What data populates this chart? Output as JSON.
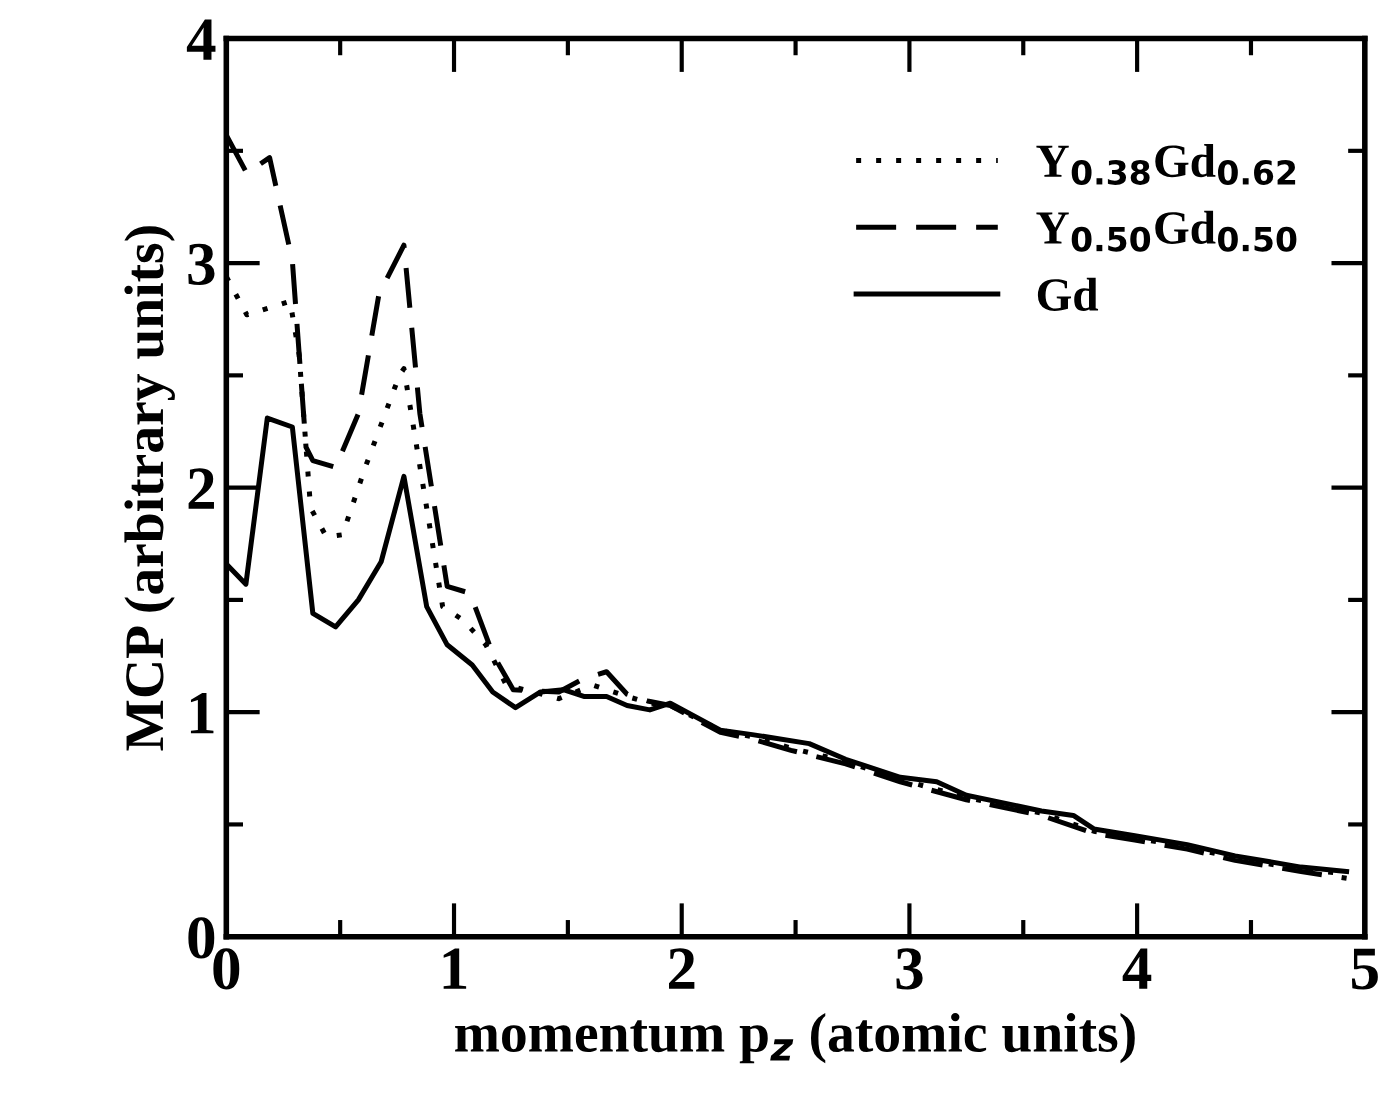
{
  "chart_data": {
    "type": "line",
    "xlabel": "momentum p$_{z}$ (atomic units)",
    "ylabel": "MCP (arbitrary units)",
    "xlim": [
      0,
      5
    ],
    "ylim": [
      0,
      4
    ],
    "xticks": [
      0,
      {
        "value": 0.5,
        "label": null
      },
      1,
      {
        "value": 1.5,
        "label": null
      },
      2,
      {
        "value": 2.5,
        "label": null
      },
      3,
      {
        "value": 3.5,
        "label": null
      },
      4,
      {
        "value": 4.5,
        "label": null
      },
      5
    ],
    "yticks": [
      0,
      {
        "value": 0.5,
        "label": null
      },
      1,
      {
        "value": 1.5,
        "label": null
      },
      2,
      {
        "value": 2.5,
        "label": null
      },
      3,
      {
        "value": 3.5,
        "label": null
      },
      4
    ],
    "legend": "top right",
    "grid": false,
    "marker": "none",
    "series": [
      {
        "name": "Y$_{0.38}$Gd$_{0.62}$",
        "color": "#000000",
        "line_style": "dotted",
        "x": [
          0,
          0.09,
          0.28,
          0.32,
          0.37,
          0.44,
          0.51,
          0.61,
          0.76,
          0.78,
          0.88,
          0.95,
          1.04,
          1.14,
          1.23,
          1.35,
          1.46,
          1.61,
          1.76,
          1.86,
          1.95,
          2.17,
          2.31,
          2.48,
          2.72,
          2.96,
          3.25,
          3.58,
          3.81,
          3.99,
          4.22,
          4.43,
          4.72,
          4.92
        ],
        "values": [
          2.94,
          2.77,
          2.83,
          2.59,
          1.91,
          1.78,
          1.79,
          2.09,
          2.5,
          2.53,
          1.91,
          1.47,
          1.41,
          1.3,
          1.12,
          1.09,
          1.06,
          1.12,
          1.07,
          1.04,
          1.03,
          0.92,
          0.89,
          0.84,
          0.78,
          0.7,
          0.62,
          0.55,
          0.47,
          0.44,
          0.4,
          0.35,
          0.3,
          0.28
        ]
      },
      {
        "name": "Y$_{0.50}$Gd$_{0.50}$",
        "color": "#000000",
        "line_style": "dashed",
        "x": [
          0,
          0.09,
          0.19,
          0.29,
          0.35,
          0.38,
          0.48,
          0.58,
          0.67,
          0.78,
          0.85,
          0.97,
          1.07,
          1.17,
          1.26,
          1.46,
          1.57,
          1.67,
          1.76,
          1.85,
          1.95,
          2.17,
          2.31,
          2.48,
          2.72,
          2.96,
          3.25,
          3.58,
          3.81,
          3.99,
          4.22,
          4.43,
          4.72,
          4.92
        ],
        "values": [
          3.57,
          3.4,
          3.47,
          3.01,
          2.18,
          2.12,
          2.09,
          2.33,
          2.86,
          3.08,
          2.33,
          1.56,
          1.53,
          1.26,
          1.1,
          1.09,
          1.15,
          1.18,
          1.08,
          1.05,
          1.03,
          0.91,
          0.88,
          0.83,
          0.77,
          0.69,
          0.61,
          0.54,
          0.46,
          0.43,
          0.39,
          0.34,
          0.29,
          0.26
        ]
      },
      {
        "name": "Gd",
        "color": "#000000",
        "line_style": "solid",
        "x": [
          0,
          0.086,
          0.18,
          0.29,
          0.38,
          0.48,
          0.58,
          0.68,
          0.78,
          0.88,
          0.97,
          1.08,
          1.17,
          1.27,
          1.38,
          1.48,
          1.57,
          1.67,
          1.76,
          1.86,
          1.95,
          2.17,
          2.31,
          2.56,
          2.72,
          2.96,
          3.12,
          3.25,
          3.58,
          3.72,
          3.81,
          3.99,
          4.22,
          4.43,
          4.72,
          4.92
        ],
        "values": [
          1.66,
          1.57,
          2.31,
          2.27,
          1.44,
          1.38,
          1.5,
          1.67,
          2.05,
          1.47,
          1.3,
          1.21,
          1.09,
          1.02,
          1.09,
          1.1,
          1.07,
          1.07,
          1.03,
          1.01,
          1.04,
          0.92,
          0.9,
          0.86,
          0.79,
          0.71,
          0.69,
          0.63,
          0.56,
          0.54,
          0.48,
          0.45,
          0.41,
          0.36,
          0.31,
          0.29
        ]
      }
    ]
  }
}
